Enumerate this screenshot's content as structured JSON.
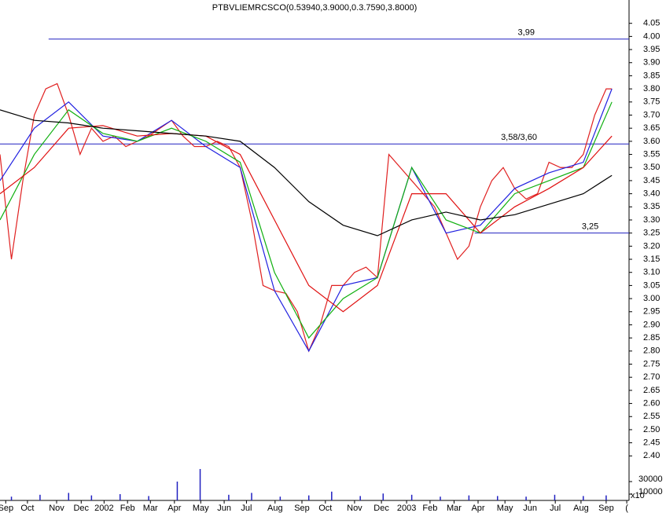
{
  "chart_data": {
    "type": "line",
    "title": "PTBVLIEMRCSCO(0.53940,3.9000,0.3.7590,3.8000)",
    "xlim": [
      0,
      110
    ],
    "xticks": [
      {
        "value": 1,
        "label": "Sep"
      },
      {
        "value": 4.8,
        "label": "Oct"
      },
      {
        "value": 9.9,
        "label": "Nov"
      },
      {
        "value": 14.2,
        "label": "Dec"
      },
      {
        "value": 18.2,
        "label": "2002"
      },
      {
        "value": 22.3,
        "label": "Feb"
      },
      {
        "value": 26.3,
        "label": "Mar"
      },
      {
        "value": 30.5,
        "label": "Apr"
      },
      {
        "value": 35.1,
        "label": "May"
      },
      {
        "value": 39.2,
        "label": "Jun"
      },
      {
        "value": 43.1,
        "label": "Jul"
      },
      {
        "value": 48.1,
        "label": "Aug"
      },
      {
        "value": 52.8,
        "label": "Sep"
      },
      {
        "value": 56.9,
        "label": "Oct"
      },
      {
        "value": 62,
        "label": "Nov"
      },
      {
        "value": 66.7,
        "label": "Dec"
      },
      {
        "value": 71.1,
        "label": "2003"
      },
      {
        "value": 75.2,
        "label": "Feb"
      },
      {
        "value": 79.4,
        "label": "Mar"
      },
      {
        "value": 83.6,
        "label": "Apr"
      },
      {
        "value": 88.3,
        "label": "May"
      },
      {
        "value": 92.7,
        "label": "Jun"
      },
      {
        "value": 97.1,
        "label": "Jul"
      },
      {
        "value": 101.6,
        "label": "Aug"
      },
      {
        "value": 106,
        "label": "Sep"
      },
      {
        "value": 109.6,
        "label": "("
      }
    ],
    "ylim": [
      2.35,
      4.13
    ],
    "yticks": [
      {
        "value": 4.05,
        "label": "4.05"
      },
      {
        "value": 4.0,
        "label": "4.00"
      },
      {
        "value": 3.95,
        "label": "3.95"
      },
      {
        "value": 3.9,
        "label": "3.90"
      },
      {
        "value": 3.85,
        "label": "3.85"
      },
      {
        "value": 3.8,
        "label": "3.80"
      },
      {
        "value": 3.75,
        "label": "3.75"
      },
      {
        "value": 3.7,
        "label": "3.70"
      },
      {
        "value": 3.65,
        "label": "3.65"
      },
      {
        "value": 3.6,
        "label": "3.60"
      },
      {
        "value": 3.55,
        "label": "3.55"
      },
      {
        "value": 3.5,
        "label": "3.50"
      },
      {
        "value": 3.45,
        "label": "3.45"
      },
      {
        "value": 3.4,
        "label": "3.40"
      },
      {
        "value": 3.35,
        "label": "3.35"
      },
      {
        "value": 3.3,
        "label": "3.30"
      },
      {
        "value": 3.25,
        "label": "3.25"
      },
      {
        "value": 3.2,
        "label": "3.20"
      },
      {
        "value": 3.15,
        "label": "3.15"
      },
      {
        "value": 3.1,
        "label": "3.10"
      },
      {
        "value": 3.05,
        "label": "3.05"
      },
      {
        "value": 3.0,
        "label": "3.00"
      },
      {
        "value": 2.95,
        "label": "2.95"
      },
      {
        "value": 2.9,
        "label": "2.90"
      },
      {
        "value": 2.85,
        "label": "2.85"
      },
      {
        "value": 2.8,
        "label": "2.80"
      },
      {
        "value": 2.75,
        "label": "2.75"
      },
      {
        "value": 2.7,
        "label": "2.70"
      },
      {
        "value": 2.65,
        "label": "2.65"
      },
      {
        "value": 2.6,
        "label": "2.60"
      },
      {
        "value": 2.55,
        "label": "2.55"
      },
      {
        "value": 2.5,
        "label": "2.50"
      },
      {
        "value": 2.45,
        "label": "2.45"
      },
      {
        "value": 2.4,
        "label": "2.40"
      }
    ],
    "series": [
      {
        "color": "#e02020",
        "x": [
          0,
          2,
          4,
          6,
          8,
          10,
          12,
          14,
          16,
          18,
          20,
          22,
          24,
          26,
          28,
          30,
          32,
          34,
          36,
          38,
          40,
          42,
          44,
          46,
          48,
          50,
          52,
          54,
          56,
          58,
          60,
          62,
          64,
          66,
          68,
          70,
          72,
          74,
          76,
          78,
          80,
          82,
          84,
          86,
          88,
          90,
          92,
          94,
          96,
          98,
          100,
          102,
          104,
          106,
          107
        ],
        "values": [
          3.55,
          3.15,
          3.45,
          3.7,
          3.8,
          3.82,
          3.7,
          3.55,
          3.65,
          3.6,
          3.62,
          3.58,
          3.6,
          3.62,
          3.65,
          3.68,
          3.62,
          3.58,
          3.58,
          3.6,
          3.58,
          3.5,
          3.3,
          3.05,
          3.03,
          3.02,
          2.95,
          2.8,
          2.9,
          3.05,
          3.05,
          3.1,
          3.12,
          3.08,
          3.55,
          3.5,
          3.45,
          3.4,
          3.35,
          3.25,
          3.15,
          3.2,
          3.35,
          3.45,
          3.5,
          3.42,
          3.38,
          3.4,
          3.52,
          3.5,
          3.5,
          3.55,
          3.7,
          3.8,
          3.8
        ]
      },
      {
        "color": "#2020e0",
        "x": [
          0,
          6,
          12,
          18,
          24,
          30,
          36,
          42,
          48,
          54,
          60,
          66,
          72,
          78,
          84,
          90,
          96,
          102,
          107
        ],
        "values": [
          3.45,
          3.65,
          3.75,
          3.62,
          3.6,
          3.68,
          3.58,
          3.5,
          3.03,
          2.8,
          3.05,
          3.08,
          3.5,
          3.25,
          3.28,
          3.42,
          3.48,
          3.52,
          3.8
        ]
      },
      {
        "color": "#10b010",
        "x": [
          0,
          6,
          12,
          18,
          24,
          30,
          36,
          42,
          48,
          54,
          60,
          66,
          72,
          78,
          84,
          90,
          96,
          102,
          107
        ],
        "values": [
          3.3,
          3.55,
          3.72,
          3.63,
          3.6,
          3.65,
          3.6,
          3.52,
          3.1,
          2.85,
          3.0,
          3.08,
          3.5,
          3.3,
          3.25,
          3.4,
          3.45,
          3.5,
          3.75
        ]
      },
      {
        "color": "#e01010",
        "x": [
          0,
          6,
          12,
          18,
          24,
          30,
          36,
          42,
          48,
          54,
          60,
          66,
          72,
          78,
          84,
          90,
          96,
          102,
          107
        ],
        "values": [
          3.4,
          3.5,
          3.65,
          3.66,
          3.62,
          3.63,
          3.62,
          3.55,
          3.3,
          3.05,
          2.95,
          3.05,
          3.4,
          3.4,
          3.25,
          3.35,
          3.42,
          3.5,
          3.62
        ]
      },
      {
        "color": "#000000",
        "x": [
          0,
          6,
          12,
          18,
          24,
          30,
          36,
          42,
          48,
          54,
          60,
          66,
          72,
          78,
          84,
          90,
          96,
          102,
          107
        ],
        "values": [
          3.72,
          3.68,
          3.67,
          3.65,
          3.64,
          3.63,
          3.62,
          3.6,
          3.5,
          3.37,
          3.28,
          3.24,
          3.3,
          3.33,
          3.3,
          3.32,
          3.36,
          3.4,
          3.47
        ]
      }
    ],
    "hlines": [
      {
        "value": 3.99,
        "label": "3,99",
        "from": 8.5
      },
      {
        "value": 3.59,
        "label": "3,58/3,60",
        "from": 0
      },
      {
        "value": 3.25,
        "label": "3,25",
        "from": 83
      }
    ],
    "hline_color": "#2020c0",
    "volume": {
      "color": "#2020c0",
      "x": [
        2,
        7,
        12,
        16,
        21,
        26,
        31,
        35,
        40,
        44,
        49,
        54,
        58,
        63,
        67,
        72,
        77,
        82,
        87,
        92,
        97,
        102,
        106
      ],
      "values": [
        6000,
        9000,
        12000,
        8000,
        10000,
        7000,
        30000,
        50000,
        9000,
        12000,
        6000,
        8000,
        14000,
        7000,
        11000,
        9000,
        6000,
        8000,
        7000,
        6000,
        9000,
        7000,
        8000
      ],
      "ylim": [
        0,
        50000
      ],
      "yticks": [
        30000,
        10000
      ],
      "unit": "x10"
    }
  }
}
